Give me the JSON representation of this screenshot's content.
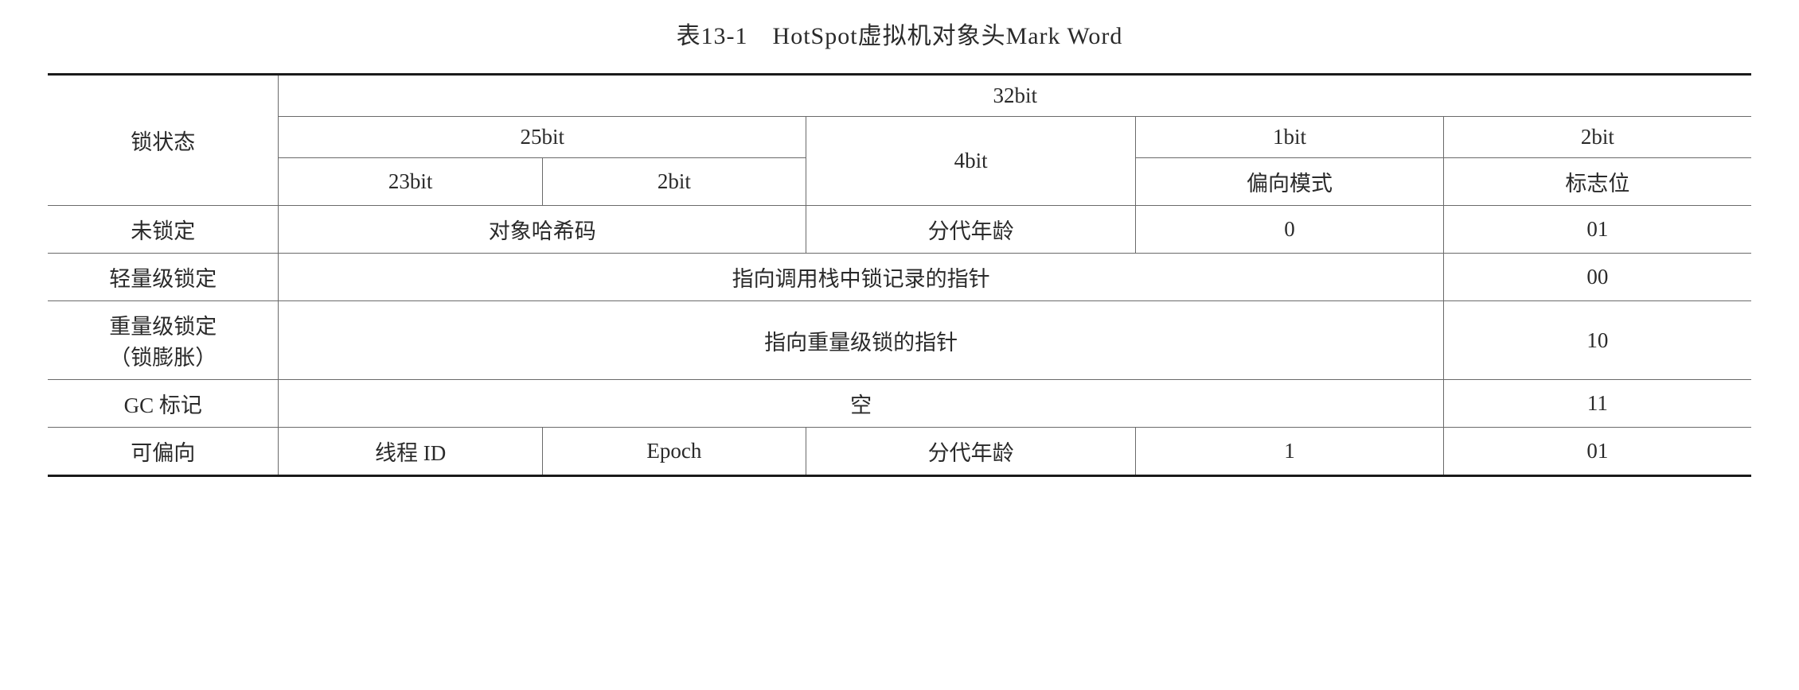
{
  "caption": "表13-1　HotSpot虚拟机对象头Mark Word",
  "header": {
    "group_top": "32bit",
    "lock_state_label": "锁状态",
    "group_25bit": "25bit",
    "group_4bit": "4bit",
    "group_1bit": "1bit",
    "group_2bit": "2bit",
    "sub_23bit": "23bit",
    "sub_2bit": "2bit",
    "bias_mode": "偏向模式",
    "flag_bits": "标志位"
  },
  "rows": {
    "unlocked": {
      "state": "未锁定",
      "hash": "对象哈希码",
      "gen_age": "分代年龄",
      "bias": "0",
      "flag": "01"
    },
    "lightweight": {
      "state": "轻量级锁定",
      "ptr": "指向调用栈中锁记录的指针",
      "flag": "00"
    },
    "heavyweight": {
      "state_line1": "重量级锁定",
      "state_line2": "（锁膨胀）",
      "ptr": "指向重量级锁的指针",
      "flag": "10"
    },
    "gc": {
      "state": "GC 标记",
      "empty": "空",
      "flag": "11"
    },
    "biasable": {
      "state": "可偏向",
      "thread_id": "线程 ID",
      "epoch": "Epoch",
      "gen_age": "分代年龄",
      "bias": "1",
      "flag": "01"
    }
  }
}
